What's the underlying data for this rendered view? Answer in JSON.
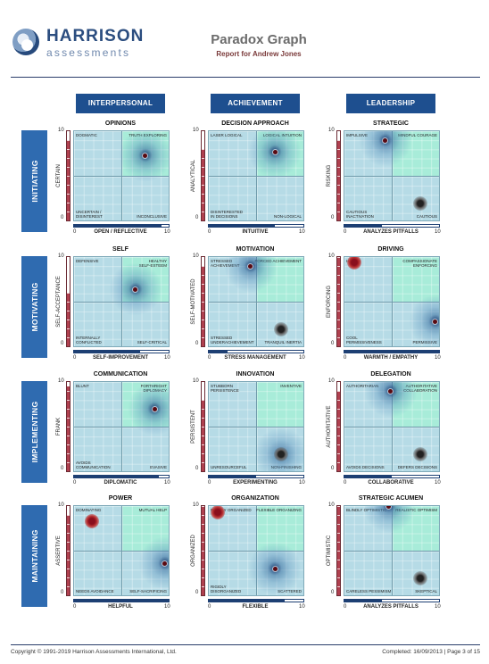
{
  "brand": {
    "name": "HARRISON",
    "sub": "assessments"
  },
  "title": "Paradox Graph",
  "subtitle": "Report for Andrew Jones",
  "columns": [
    "INTERPERSONAL",
    "ACHIEVEMENT",
    "LEADERSHIP"
  ],
  "rows": [
    "INITIATING",
    "MOTIVATING",
    "IMPLEMENTING",
    "MAINTAINING"
  ],
  "axis_ticks": {
    "min": "0",
    "max": "10"
  },
  "graphs": [
    {
      "title": "OPINIONS",
      "ylabel": "CERTAIN",
      "xlabel": "OPEN / REFLECTIVE",
      "quad": {
        "tl": "DOGMATIC",
        "tr": "TRUTH EXPLORING",
        "bl": "UNCERTAIN /\nDISINTEREST",
        "br": "INCONCLUSIVE"
      },
      "x": 7.5,
      "y": 7.3,
      "glow": true,
      "marker": "dot",
      "ybar": 9.0,
      "xbar": 9.2
    },
    {
      "title": "DECISION APPROACH",
      "ylabel": "ANALYTICAL",
      "xlabel": "INTUITIVE",
      "quad": {
        "tl": "LASER LOGICAL",
        "tr": "LOGICAL INTUITION",
        "bl": "DISINTERESTED\nIN DECISIONS",
        "br": "NON-LOGICAL"
      },
      "x": 7.0,
      "y": 7.7,
      "glow": true,
      "marker": "dot",
      "ybar": 8.0,
      "xbar": 7.0
    },
    {
      "title": "STRATEGIC",
      "ylabel": "RISKING",
      "xlabel": "ANALYZES PITFALLS",
      "quad": {
        "tl": "IMPULSIVE",
        "tr": "MINDFUL COURAGE",
        "bl": "CAUTIOUS\nINACTIVATION",
        "br": "CAUTIOUS"
      },
      "x": 4.3,
      "y": 9.0,
      "glow": true,
      "marker": "dot",
      "x2": 8.0,
      "y2": 1.9,
      "marker2": "halo-s",
      "ybar": 9.0,
      "xbar": 4.0
    },
    {
      "title": "SELF",
      "ylabel": "SELF-ACCEPTANCE",
      "xlabel": "SELF-IMPROVEMENT",
      "quad": {
        "tl": "DEFENSIVE",
        "tr": "HEALTHY\nSELF-ESTEEM",
        "bl": "INTERNALLY\nCONFLICTED",
        "br": "SELF-CRITICAL"
      },
      "x": 6.5,
      "y": 6.4,
      "glow": true,
      "marker": "dot",
      "ybar": 6.0,
      "xbar": 7.0
    },
    {
      "title": "MOTIVATION",
      "ylabel": "SELF-MOTIVATED",
      "xlabel": "STRESS MANAGEMENT",
      "quad": {
        "tl": "STRESSED\nACHIEVEMENT",
        "tr": "FORCED ACHIEVEMENT",
        "bl": "STRESSED\nUNDERACHIEVEMENT",
        "br": "TRANQUIL INERTIA"
      },
      "x": 4.4,
      "y": 9.0,
      "glow": true,
      "marker": "dot",
      "x2": 7.6,
      "y2": 1.9,
      "marker2": "halo-s",
      "ybar": 9.0,
      "xbar": 2.0
    },
    {
      "title": "DRIVING",
      "ylabel": "ENFORCING",
      "xlabel": "WARMTH / EMPATHY",
      "quad": {
        "tl": "HARSH",
        "tr": "COMPASSIONATE\nENFORCING",
        "bl": "COOL\nPERMISSIVENESS",
        "br": "PERMISSIVE"
      },
      "x": 9.6,
      "y": 2.8,
      "glow": true,
      "marker": "dot",
      "x2": 1.0,
      "y2": 9.4,
      "marker2": "halo-r",
      "ybar": 10.0,
      "xbar": 10.0
    },
    {
      "title": "COMMUNICATION",
      "ylabel": "FRANK",
      "xlabel": "DIPLOMATIC",
      "quad": {
        "tl": "BLUNT",
        "tr": "FORTHRIGHT\nDIPLOMACY",
        "bl": "AVOIDS\nCOMMUNICATION",
        "br": "EVASIVE"
      },
      "x": 8.5,
      "y": 7.0,
      "glow": true,
      "marker": "dot",
      "ybar": 9.5,
      "xbar": 9.0
    },
    {
      "title": "INNOVATION",
      "ylabel": "PERSISTENT",
      "xlabel": "EXPERIMENTING",
      "quad": {
        "tl": "STUBBORN\nPERSISTENCE",
        "tr": "INVENTIVE",
        "bl": "UNRESOURCEFUL",
        "br": "NON-FINISHING"
      },
      "x": 7.6,
      "y": 1.9,
      "glow": true,
      "marker": "halo-s",
      "ybar": 8.0,
      "xbar": 5.0
    },
    {
      "title": "DELEGATION",
      "ylabel": "AUTHORITATIVE",
      "xlabel": "COLLABORATIVE",
      "quad": {
        "tl": "AUTHORITARIAN",
        "tr": "AUTHORITATIVE\nCOLLABORATION",
        "bl": "AVOIDS DECISIONS",
        "br": "DEFERS DECISIONS"
      },
      "x": 4.9,
      "y": 9.0,
      "glow": true,
      "marker": "dot",
      "x2": 8.0,
      "y2": 1.9,
      "marker2": "halo-s",
      "ybar": 9.0,
      "xbar": 5.0
    },
    {
      "title": "POWER",
      "ylabel": "ASSERTIVE",
      "xlabel": "HELPFUL",
      "quad": {
        "tl": "DOMINATING",
        "tr": "MUTUAL HELP",
        "bl": "NEEDS AVOIDANCE",
        "br": "SELF-SACRIFICING"
      },
      "x": 9.6,
      "y": 3.6,
      "glow": true,
      "marker": "dot",
      "x2": 1.9,
      "y2": 8.3,
      "marker2": "halo-r",
      "ybar": 9.0,
      "xbar": 10.0
    },
    {
      "title": "ORGANIZATION",
      "ylabel": "ORGANIZED",
      "xlabel": "FLEXIBLE",
      "quad": {
        "tl": "RIGIDLY ORGANIZED",
        "tr": "FLEXIBLE ORGANIZING",
        "bl": "RIGIDLY\nDISORGANIZED",
        "br": "SCATTERED"
      },
      "x": 7.0,
      "y": 3.0,
      "glow": true,
      "marker": "dot",
      "x2": 0.9,
      "y2": 9.3,
      "marker2": "halo-r",
      "ybar": 10.0,
      "xbar": 8.0
    },
    {
      "title": "STRATEGIC ACUMEN",
      "ylabel": "OPTIMISTIC",
      "xlabel": "ANALYZES PITFALLS",
      "quad": {
        "tl": "BLINDLY OPTIMISTIC",
        "tr": "REALISTIC OPTIMISM",
        "bl": "CARELESS PESSIMISM",
        "br": "SKEPTICAL"
      },
      "x": 4.7,
      "y": 10.0,
      "glow": true,
      "marker": "dot",
      "x2": 8.0,
      "y2": 1.9,
      "marker2": "halo-s",
      "ybar": 10.0,
      "xbar": 4.0
    }
  ],
  "footer": {
    "copyright": "Copyright © 1991-2019 Harrison Assessments International, Ltd.",
    "completed": "Completed: 16/09/2013 | Page 3 of 15"
  }
}
